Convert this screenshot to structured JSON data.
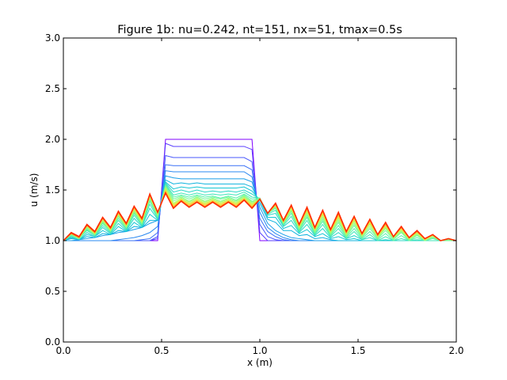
{
  "chart_data": {
    "type": "line",
    "title": "Figure 1b: nu=0.242, nt=151, nx=51, tmax=0.5s",
    "xlabel": "x (m)",
    "ylabel": "u (m/s)",
    "xlim": [
      0,
      2
    ],
    "ylim": [
      0,
      3
    ],
    "xticks": [
      "0.0",
      "0.5",
      "1.0",
      "1.5",
      "2.0"
    ],
    "yticks": [
      "0.0",
      "0.5",
      "1.0",
      "1.5",
      "2.0",
      "2.5",
      "3.0"
    ],
    "grid": false,
    "legend": "none",
    "x": [
      0.0,
      0.04,
      0.08,
      0.12,
      0.16,
      0.2,
      0.24,
      0.28,
      0.32,
      0.36,
      0.4,
      0.44,
      0.48,
      0.52,
      0.56,
      0.6,
      0.64,
      0.68,
      0.72,
      0.76,
      0.8,
      0.84,
      0.88,
      0.92,
      0.96,
      1.0,
      1.04,
      1.08,
      1.12,
      1.16,
      1.2,
      1.24,
      1.28,
      1.32,
      1.36,
      1.4,
      1.44,
      1.48,
      1.52,
      1.56,
      1.6,
      1.64,
      1.68,
      1.72,
      1.76,
      1.8,
      1.84,
      1.88,
      1.92,
      1.96,
      2.0
    ],
    "series": [
      {
        "color": "#8000ff",
        "values": [
          1,
          1,
          1,
          1,
          1,
          1,
          1,
          1,
          1,
          1,
          1,
          1,
          1,
          2,
          2,
          2,
          2,
          2,
          2,
          2,
          2,
          2,
          2,
          2,
          2,
          1,
          1,
          1,
          1,
          1,
          1,
          1,
          1,
          1,
          1,
          1,
          1,
          1,
          1,
          1,
          1,
          1,
          1,
          1,
          1,
          1,
          1,
          1,
          1,
          1,
          1
        ]
      },
      {
        "color": "#5a3dfe",
        "values": [
          1,
          1,
          1,
          1,
          1,
          1,
          1,
          1,
          1,
          1,
          1,
          1,
          1.02,
          1.96,
          1.93,
          1.93,
          1.93,
          1.93,
          1.93,
          1.93,
          1.93,
          1.93,
          1.93,
          1.93,
          1.9,
          1.08,
          1,
          1,
          1,
          1,
          1,
          1,
          1,
          1,
          1,
          1,
          1,
          1,
          1,
          1,
          1,
          1,
          1,
          1,
          1,
          1,
          1,
          1,
          1,
          1,
          1
        ]
      },
      {
        "color": "#4a58fb",
        "values": [
          1,
          1,
          1,
          1,
          1,
          1,
          1,
          1,
          1,
          1,
          1,
          1,
          1.04,
          1.84,
          1.82,
          1.82,
          1.82,
          1.82,
          1.82,
          1.82,
          1.82,
          1.82,
          1.82,
          1.82,
          1.78,
          1.16,
          1.04,
          1.01,
          1,
          1,
          1,
          1,
          1,
          1,
          1,
          1,
          1,
          1,
          1,
          1,
          1,
          1,
          1,
          1,
          1,
          1,
          1,
          1,
          1,
          1,
          1
        ]
      },
      {
        "color": "#3a70f6",
        "values": [
          1,
          1,
          1,
          1,
          1,
          1,
          1,
          1,
          1,
          1,
          1.01,
          1.02,
          1.08,
          1.75,
          1.74,
          1.74,
          1.74,
          1.74,
          1.74,
          1.74,
          1.74,
          1.74,
          1.74,
          1.74,
          1.7,
          1.22,
          1.09,
          1.04,
          1.01,
          1,
          1,
          1,
          1,
          1,
          1,
          1,
          1,
          1,
          1,
          1,
          1,
          1,
          1,
          1,
          1,
          1,
          1,
          1,
          1,
          1,
          1
        ]
      },
      {
        "color": "#2a88f0",
        "values": [
          1,
          1,
          1,
          1,
          1,
          1,
          1,
          1.01,
          1.02,
          1.03,
          1.05,
          1.08,
          1.14,
          1.69,
          1.68,
          1.68,
          1.68,
          1.68,
          1.68,
          1.68,
          1.68,
          1.68,
          1.68,
          1.68,
          1.63,
          1.28,
          1.13,
          1.07,
          1.03,
          1.01,
          1,
          1,
          1,
          1,
          1,
          1,
          1,
          1,
          1,
          1,
          1,
          1,
          1,
          1,
          1,
          1,
          1,
          1,
          1,
          1,
          1
        ]
      },
      {
        "color": "#1a9ee8",
        "values": [
          1,
          1,
          1.01,
          1.02,
          1.03,
          1.05,
          1.06,
          1.08,
          1.09,
          1.11,
          1.13,
          1.17,
          1.2,
          1.64,
          1.62,
          1.61,
          1.61,
          1.61,
          1.61,
          1.61,
          1.61,
          1.61,
          1.61,
          1.61,
          1.58,
          1.33,
          1.17,
          1.1,
          1.06,
          1.03,
          1.02,
          1.01,
          1,
          1,
          1,
          1,
          1,
          1,
          1,
          1,
          1,
          1,
          1,
          1,
          1,
          1,
          1,
          1,
          1,
          1,
          1
        ]
      },
      {
        "color": "#0eb3de",
        "values": [
          1,
          1.02,
          1.01,
          1.04,
          1.03,
          1.07,
          1.06,
          1.1,
          1.09,
          1.14,
          1.13,
          1.2,
          1.2,
          1.6,
          1.56,
          1.57,
          1.56,
          1.57,
          1.56,
          1.56,
          1.56,
          1.56,
          1.56,
          1.56,
          1.53,
          1.37,
          1.21,
          1.18,
          1.1,
          1.1,
          1.05,
          1.06,
          1.02,
          1.03,
          1.01,
          1,
          1,
          1,
          1,
          1,
          1,
          1,
          1,
          1,
          1,
          1,
          1,
          1,
          1,
          1,
          1
        ]
      },
      {
        "color": "#14c6d3",
        "values": [
          1,
          1.03,
          1.01,
          1.06,
          1.04,
          1.1,
          1.06,
          1.14,
          1.09,
          1.18,
          1.13,
          1.26,
          1.2,
          1.58,
          1.51,
          1.53,
          1.52,
          1.53,
          1.52,
          1.52,
          1.52,
          1.52,
          1.52,
          1.53,
          1.49,
          1.4,
          1.23,
          1.23,
          1.12,
          1.15,
          1.07,
          1.11,
          1.04,
          1.07,
          1.02,
          1.04,
          1.01,
          1.02,
          1,
          1,
          1,
          1,
          1,
          1,
          1,
          1,
          1,
          1,
          1,
          1,
          1
        ]
      },
      {
        "color": "#28d8c6",
        "values": [
          1,
          1.04,
          1.01,
          1.08,
          1.04,
          1.13,
          1.07,
          1.17,
          1.1,
          1.22,
          1.14,
          1.32,
          1.21,
          1.57,
          1.48,
          1.5,
          1.48,
          1.5,
          1.48,
          1.49,
          1.48,
          1.49,
          1.48,
          1.5,
          1.46,
          1.41,
          1.25,
          1.27,
          1.14,
          1.2,
          1.08,
          1.16,
          1.05,
          1.12,
          1.03,
          1.08,
          1.02,
          1.05,
          1.01,
          1.03,
          1,
          1.01,
          1,
          1,
          1,
          1,
          1,
          1,
          1,
          1,
          1
        ]
      },
      {
        "color": "#3ee6b8",
        "values": [
          1,
          1.05,
          1.02,
          1.1,
          1.05,
          1.15,
          1.08,
          1.2,
          1.11,
          1.25,
          1.15,
          1.36,
          1.22,
          1.56,
          1.45,
          1.47,
          1.45,
          1.47,
          1.45,
          1.46,
          1.45,
          1.46,
          1.45,
          1.48,
          1.43,
          1.42,
          1.26,
          1.3,
          1.15,
          1.24,
          1.09,
          1.2,
          1.06,
          1.16,
          1.04,
          1.12,
          1.02,
          1.09,
          1.01,
          1.06,
          1,
          1.04,
          1,
          1.02,
          1,
          1.01,
          1,
          1,
          1,
          1,
          1
        ]
      },
      {
        "color": "#56f1a8",
        "values": [
          1,
          1.05,
          1.02,
          1.11,
          1.05,
          1.17,
          1.09,
          1.22,
          1.12,
          1.27,
          1.16,
          1.39,
          1.23,
          1.55,
          1.43,
          1.45,
          1.43,
          1.45,
          1.43,
          1.44,
          1.42,
          1.44,
          1.42,
          1.46,
          1.41,
          1.42,
          1.27,
          1.32,
          1.16,
          1.27,
          1.1,
          1.23,
          1.07,
          1.19,
          1.05,
          1.15,
          1.03,
          1.12,
          1.02,
          1.09,
          1.01,
          1.07,
          1,
          1.05,
          1,
          1.03,
          1,
          1.02,
          1,
          1,
          1
        ]
      },
      {
        "color": "#72f996",
        "values": [
          1,
          1.06,
          1.02,
          1.12,
          1.06,
          1.18,
          1.09,
          1.24,
          1.13,
          1.28,
          1.17,
          1.41,
          1.24,
          1.54,
          1.41,
          1.44,
          1.41,
          1.44,
          1.41,
          1.43,
          1.41,
          1.43,
          1.4,
          1.45,
          1.39,
          1.42,
          1.27,
          1.33,
          1.17,
          1.29,
          1.11,
          1.25,
          1.08,
          1.21,
          1.06,
          1.18,
          1.04,
          1.15,
          1.03,
          1.12,
          1.02,
          1.1,
          1.01,
          1.08,
          1,
          1.05,
          1,
          1.03,
          1,
          1,
          1
        ]
      },
      {
        "color": "#8efc82",
        "values": [
          1,
          1.06,
          1.02,
          1.13,
          1.06,
          1.19,
          1.1,
          1.25,
          1.13,
          1.29,
          1.17,
          1.42,
          1.25,
          1.53,
          1.39,
          1.43,
          1.39,
          1.43,
          1.39,
          1.42,
          1.39,
          1.42,
          1.39,
          1.44,
          1.38,
          1.42,
          1.27,
          1.34,
          1.17,
          1.3,
          1.12,
          1.27,
          1.09,
          1.23,
          1.07,
          1.2,
          1.05,
          1.17,
          1.04,
          1.14,
          1.03,
          1.12,
          1.02,
          1.09,
          1.01,
          1.06,
          1,
          1.04,
          1,
          1.01,
          1
        ]
      },
      {
        "color": "#aafc6e",
        "values": [
          1,
          1.07,
          1.03,
          1.14,
          1.07,
          1.2,
          1.1,
          1.26,
          1.14,
          1.3,
          1.18,
          1.43,
          1.26,
          1.52,
          1.37,
          1.42,
          1.38,
          1.42,
          1.38,
          1.41,
          1.38,
          1.41,
          1.38,
          1.43,
          1.37,
          1.41,
          1.27,
          1.34,
          1.18,
          1.31,
          1.13,
          1.28,
          1.1,
          1.25,
          1.08,
          1.22,
          1.06,
          1.19,
          1.05,
          1.16,
          1.04,
          1.13,
          1.03,
          1.1,
          1.02,
          1.07,
          1.01,
          1.05,
          1,
          1.02,
          1
        ]
      },
      {
        "color": "#c6f65a",
        "values": [
          1,
          1.07,
          1.03,
          1.14,
          1.07,
          1.21,
          1.11,
          1.26,
          1.15,
          1.31,
          1.19,
          1.44,
          1.27,
          1.51,
          1.36,
          1.41,
          1.37,
          1.41,
          1.37,
          1.4,
          1.37,
          1.4,
          1.37,
          1.42,
          1.36,
          1.41,
          1.27,
          1.35,
          1.18,
          1.32,
          1.14,
          1.29,
          1.11,
          1.26,
          1.09,
          1.23,
          1.07,
          1.2,
          1.05,
          1.17,
          1.04,
          1.14,
          1.03,
          1.11,
          1.02,
          1.08,
          1.01,
          1.05,
          1,
          1.02,
          1
        ]
      },
      {
        "color": "#e2e546",
        "values": [
          1,
          1.07,
          1.03,
          1.15,
          1.07,
          1.21,
          1.11,
          1.27,
          1.15,
          1.32,
          1.2,
          1.44,
          1.27,
          1.5,
          1.35,
          1.41,
          1.36,
          1.4,
          1.36,
          1.4,
          1.36,
          1.4,
          1.36,
          1.42,
          1.35,
          1.41,
          1.27,
          1.35,
          1.19,
          1.33,
          1.14,
          1.3,
          1.11,
          1.27,
          1.09,
          1.24,
          1.07,
          1.21,
          1.06,
          1.18,
          1.05,
          1.15,
          1.04,
          1.12,
          1.02,
          1.08,
          1.01,
          1.05,
          1,
          1.02,
          1
        ]
      },
      {
        "color": "#fccc34",
        "values": [
          1,
          1.07,
          1.03,
          1.15,
          1.08,
          1.22,
          1.12,
          1.27,
          1.16,
          1.32,
          1.2,
          1.45,
          1.28,
          1.49,
          1.34,
          1.4,
          1.35,
          1.4,
          1.35,
          1.39,
          1.35,
          1.39,
          1.35,
          1.41,
          1.34,
          1.41,
          1.27,
          1.35,
          1.19,
          1.34,
          1.15,
          1.31,
          1.12,
          1.28,
          1.1,
          1.25,
          1.08,
          1.22,
          1.06,
          1.19,
          1.05,
          1.16,
          1.04,
          1.12,
          1.03,
          1.09,
          1.01,
          1.06,
          1,
          1.02,
          1
        ]
      },
      {
        "color": "#ffa824",
        "values": [
          1,
          1.07,
          1.03,
          1.15,
          1.08,
          1.22,
          1.12,
          1.28,
          1.16,
          1.33,
          1.21,
          1.45,
          1.28,
          1.48,
          1.33,
          1.4,
          1.34,
          1.39,
          1.34,
          1.39,
          1.34,
          1.39,
          1.34,
          1.41,
          1.33,
          1.41,
          1.27,
          1.36,
          1.19,
          1.34,
          1.15,
          1.31,
          1.12,
          1.29,
          1.1,
          1.26,
          1.08,
          1.23,
          1.07,
          1.2,
          1.05,
          1.16,
          1.04,
          1.13,
          1.03,
          1.09,
          1.02,
          1.06,
          1,
          1.02,
          1
        ]
      },
      {
        "color": "#ff7c14",
        "values": [
          1,
          1.07,
          1.03,
          1.15,
          1.08,
          1.22,
          1.12,
          1.28,
          1.16,
          1.33,
          1.21,
          1.45,
          1.28,
          1.47,
          1.32,
          1.39,
          1.33,
          1.38,
          1.33,
          1.38,
          1.33,
          1.38,
          1.33,
          1.4,
          1.32,
          1.41,
          1.27,
          1.36,
          1.2,
          1.35,
          1.16,
          1.32,
          1.13,
          1.3,
          1.11,
          1.27,
          1.09,
          1.24,
          1.07,
          1.21,
          1.06,
          1.17,
          1.04,
          1.13,
          1.03,
          1.09,
          1.02,
          1.06,
          1,
          1.02,
          1
        ]
      },
      {
        "color": "#ff2a00",
        "values": [
          1,
          1.08,
          1.04,
          1.16,
          1.09,
          1.23,
          1.13,
          1.29,
          1.17,
          1.34,
          1.22,
          1.46,
          1.28,
          1.47,
          1.32,
          1.39,
          1.33,
          1.38,
          1.33,
          1.38,
          1.33,
          1.38,
          1.33,
          1.4,
          1.32,
          1.41,
          1.27,
          1.37,
          1.2,
          1.35,
          1.16,
          1.33,
          1.13,
          1.3,
          1.11,
          1.28,
          1.09,
          1.24,
          1.07,
          1.21,
          1.06,
          1.18,
          1.04,
          1.14,
          1.03,
          1.1,
          1.02,
          1.06,
          1,
          1.02,
          1
        ]
      }
    ]
  }
}
